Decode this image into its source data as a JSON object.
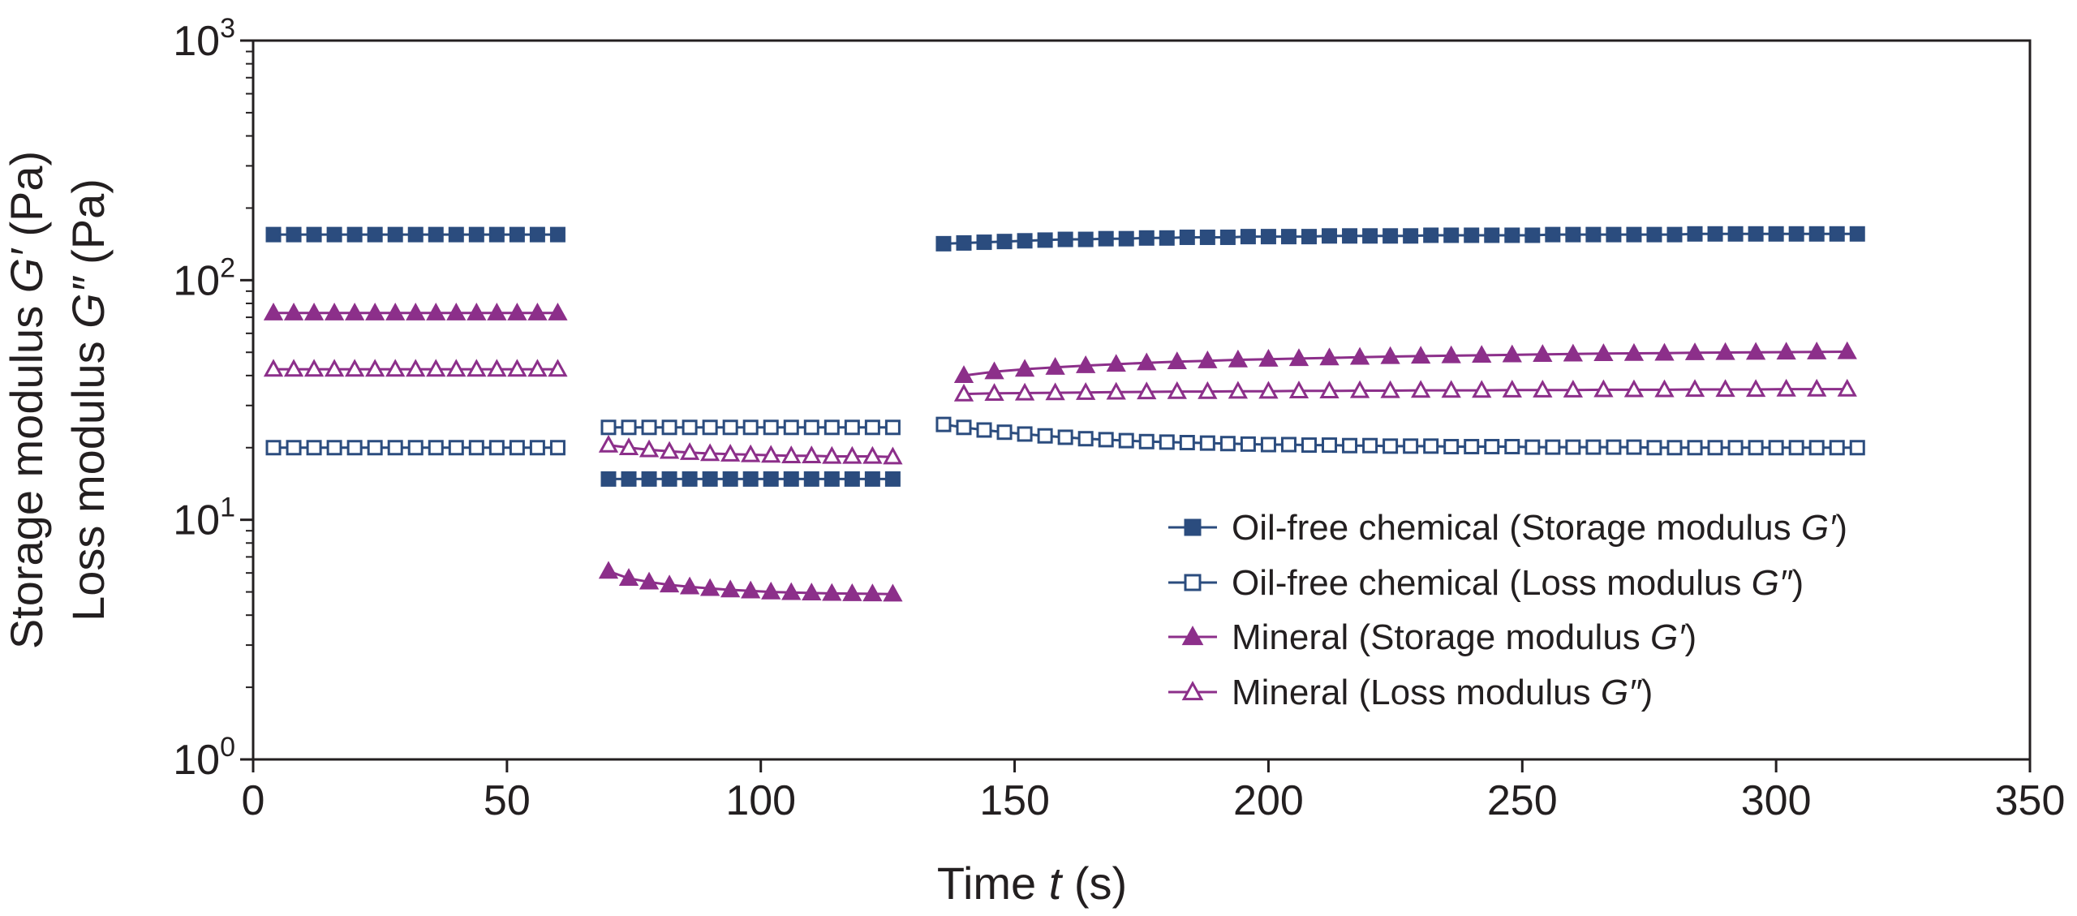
{
  "chart_data": {
    "type": "scatter",
    "title": "",
    "xlabel_main": "Time ",
    "xlabel_var": "t",
    "xlabel_unit": " (s)",
    "ylabel_line1_main": "Storage modulus ",
    "ylabel_line1_var": "G′",
    "ylabel_line1_unit": " (Pa)",
    "ylabel_line2_main": "Loss modulus ",
    "ylabel_line2_var": "G″",
    "ylabel_line2_unit": " (Pa)",
    "xlim": [
      0,
      350
    ],
    "ylim": [
      1,
      1000
    ],
    "yscale": "log",
    "x_ticks": [
      0,
      50,
      100,
      150,
      200,
      250,
      300,
      350
    ],
    "x_tick_labels": [
      "0",
      "50",
      "100",
      "150",
      "200",
      "250",
      "300",
      "350"
    ],
    "y_ticks": [
      {
        "value": 1,
        "base": "10",
        "exp": "0"
      },
      {
        "value": 10,
        "base": "10",
        "exp": "1"
      },
      {
        "value": 100,
        "base": "10",
        "exp": "2"
      },
      {
        "value": 1000,
        "base": "10",
        "exp": "3"
      }
    ],
    "grid": false,
    "legend_position": "bottom-right",
    "colors": {
      "oil_free": "#2b4c7e",
      "mineral": "#8c2f8a",
      "axis": "#231f20"
    },
    "series": [
      {
        "name": "Oil-free chemical (Storage modulus G′)",
        "legend_main": "Oil-free chemical (Storage modulus ",
        "legend_var": "G′",
        "legend_end": ")",
        "color": "#2b4c7e",
        "marker": "square",
        "filled": true,
        "segments": [
          {
            "x": [
              4,
              8,
              12,
              16,
              20,
              24,
              28,
              32,
              36,
              40,
              44,
              48,
              52,
              56,
              60
            ],
            "y": [
              155,
              155,
              155,
              155,
              155,
              155,
              155,
              155,
              155,
              155,
              155,
              155,
              155,
              155,
              155
            ]
          },
          {
            "x": [
              70,
              74,
              78,
              82,
              86,
              90,
              94,
              98,
              102,
              106,
              110,
              114,
              118,
              122,
              126
            ],
            "y": [
              14.8,
              14.8,
              14.8,
              14.8,
              14.8,
              14.8,
              14.8,
              14.8,
              14.8,
              14.8,
              14.8,
              14.8,
              14.8,
              14.8,
              14.8
            ]
          },
          {
            "x": [
              136,
              140,
              144,
              148,
              152,
              156,
              160,
              164,
              168,
              172,
              176,
              180,
              184,
              188,
              192,
              196,
              200,
              204,
              208,
              212,
              216,
              220,
              224,
              228,
              232,
              236,
              240,
              244,
              248,
              252,
              256,
              260,
              264,
              268,
              272,
              276,
              280,
              284,
              288,
              292,
              296,
              300,
              304,
              308,
              312,
              316
            ],
            "y": [
              142,
              143,
              144,
              145,
              146,
              147,
              148,
              148,
              149,
              149,
              150,
              150,
              151,
              151,
              151,
              152,
              152,
              152,
              152,
              153,
              153,
              153,
              153,
              153,
              154,
              154,
              154,
              154,
              154,
              154,
              155,
              155,
              155,
              155,
              155,
              155,
              155,
              156,
              156,
              156,
              156,
              156,
              156,
              156,
              156,
              156
            ]
          }
        ]
      },
      {
        "name": "Oil-free chemical (Loss modulus G″)",
        "legend_main": "Oil-free chemical (Loss modulus ",
        "legend_var": "G″",
        "legend_end": ")",
        "color": "#2b4c7e",
        "marker": "square",
        "filled": false,
        "segments": [
          {
            "x": [
              4,
              8,
              12,
              16,
              20,
              24,
              28,
              32,
              36,
              40,
              44,
              48,
              52,
              56,
              60
            ],
            "y": [
              20,
              20,
              20,
              20,
              20,
              20,
              20,
              20,
              20,
              20,
              20,
              20,
              20,
              20,
              20
            ]
          },
          {
            "x": [
              70,
              74,
              78,
              82,
              86,
              90,
              94,
              98,
              102,
              106,
              110,
              114,
              118,
              122,
              126
            ],
            "y": [
              24.3,
              24.3,
              24.3,
              24.3,
              24.3,
              24.3,
              24.3,
              24.3,
              24.3,
              24.3,
              24.3,
              24.3,
              24.3,
              24.3,
              24.3
            ]
          },
          {
            "x": [
              136,
              140,
              144,
              148,
              152,
              156,
              160,
              164,
              168,
              172,
              176,
              180,
              184,
              188,
              192,
              196,
              200,
              204,
              208,
              212,
              216,
              220,
              224,
              228,
              232,
              236,
              240,
              244,
              248,
              252,
              256,
              260,
              264,
              268,
              272,
              276,
              280,
              284,
              288,
              292,
              296,
              300,
              304,
              308,
              312,
              316
            ],
            "y": [
              25,
              24.3,
              23.7,
              23.2,
              22.8,
              22.4,
              22.1,
              21.8,
              21.6,
              21.4,
              21.2,
              21.1,
              21,
              20.9,
              20.8,
              20.7,
              20.6,
              20.6,
              20.5,
              20.5,
              20.4,
              20.4,
              20.3,
              20.3,
              20.3,
              20.2,
              20.2,
              20.2,
              20.2,
              20.1,
              20.1,
              20.1,
              20.1,
              20.1,
              20.1,
              20,
              20,
              20,
              20,
              20,
              20,
              20,
              20,
              20,
              20,
              20
            ]
          }
        ]
      },
      {
        "name": "Mineral (Storage modulus G′)",
        "legend_main": "Mineral (Storage modulus ",
        "legend_var": "G′",
        "legend_end": ")",
        "color": "#8c2f8a",
        "marker": "triangle",
        "filled": true,
        "segments": [
          {
            "x": [
              4,
              8,
              12,
              16,
              20,
              24,
              28,
              32,
              36,
              40,
              44,
              48,
              52,
              56,
              60
            ],
            "y": [
              73,
              73,
              73,
              73,
              73,
              73,
              73,
              73,
              73,
              73,
              73,
              73,
              73,
              73,
              73
            ]
          },
          {
            "x": [
              70,
              74,
              78,
              82,
              86,
              90,
              94,
              98,
              102,
              106,
              110,
              114,
              118,
              122,
              126
            ],
            "y": [
              6.1,
              5.7,
              5.5,
              5.35,
              5.25,
              5.17,
              5.1,
              5.05,
              5.0,
              4.97,
              4.95,
              4.93,
              4.92,
              4.91,
              4.9
            ]
          },
          {
            "x": [
              140,
              146,
              152,
              158,
              164,
              170,
              176,
              182,
              188,
              194,
              200,
              206,
              212,
              218,
              224,
              230,
              236,
              242,
              248,
              254,
              260,
              266,
              272,
              278,
              284,
              290,
              296,
              302,
              308,
              314
            ],
            "y": [
              40,
              41.5,
              42.5,
              43.3,
              44,
              44.6,
              45.2,
              45.7,
              46.1,
              46.5,
              46.8,
              47.1,
              47.4,
              47.7,
              48,
              48.2,
              48.4,
              48.6,
              48.8,
              49,
              49.2,
              49.4,
              49.5,
              49.6,
              49.8,
              49.9,
              50,
              50.1,
              50.2,
              50.3
            ]
          }
        ]
      },
      {
        "name": "Mineral (Loss modulus G″)",
        "legend_main": "Mineral (Loss modulus ",
        "legend_var": "G″",
        "legend_end": ")",
        "color": "#8c2f8a",
        "marker": "triangle",
        "filled": false,
        "segments": [
          {
            "x": [
              4,
              8,
              12,
              16,
              20,
              24,
              28,
              32,
              36,
              40,
              44,
              48,
              52,
              56,
              60
            ],
            "y": [
              42.5,
              42.5,
              42.5,
              42.5,
              42.5,
              42.5,
              42.5,
              42.5,
              42.5,
              42.5,
              42.5,
              42.5,
              42.5,
              42.5,
              42.5
            ]
          },
          {
            "x": [
              70,
              74,
              78,
              82,
              86,
              90,
              94,
              98,
              102,
              106,
              110,
              114,
              118,
              122,
              126
            ],
            "y": [
              20.5,
              20,
              19.6,
              19.3,
              19.1,
              18.9,
              18.8,
              18.7,
              18.6,
              18.5,
              18.5,
              18.4,
              18.4,
              18.4,
              18.3
            ]
          },
          {
            "x": [
              140,
              146,
              152,
              158,
              164,
              170,
              176,
              182,
              188,
              194,
              200,
              206,
              212,
              218,
              224,
              230,
              236,
              242,
              248,
              254,
              260,
              266,
              272,
              278,
              284,
              290,
              296,
              302,
              308,
              314
            ],
            "y": [
              33.5,
              33.7,
              33.8,
              33.9,
              34,
              34.1,
              34.2,
              34.3,
              34.3,
              34.4,
              34.4,
              34.5,
              34.5,
              34.6,
              34.6,
              34.7,
              34.7,
              34.7,
              34.8,
              34.8,
              34.8,
              34.9,
              34.9,
              34.9,
              35,
              35,
              35,
              35.1,
              35.1,
              35.1
            ]
          }
        ]
      }
    ]
  }
}
